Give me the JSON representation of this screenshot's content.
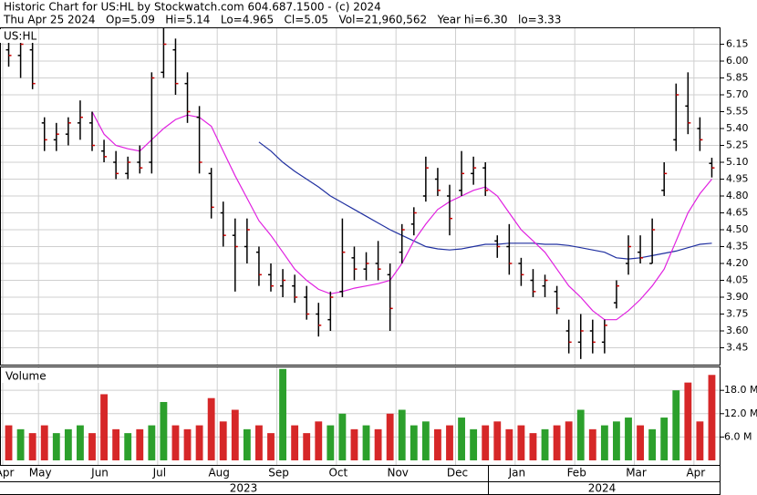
{
  "header": {
    "title": "Historic Chart for US:HL by Stockwatch.com 604.687.1500 - (c) 2024",
    "summary": "Thu Apr 25 2024   Op=5.09   Hi=5.14   Lo=4.965   Cl=5.05   Vol=21,960,562   Year hi=6.30   lo=3.33"
  },
  "chart_data": {
    "type": "ohlc",
    "label": "US:HL",
    "grid": true,
    "categories": [
      "Apr",
      null,
      null,
      "May",
      null,
      null,
      null,
      null,
      "Jun",
      null,
      null,
      null,
      null,
      "Jul",
      null,
      null,
      null,
      null,
      "Aug",
      null,
      null,
      null,
      null,
      "Sep",
      null,
      null,
      null,
      null,
      "Oct",
      null,
      null,
      null,
      null,
      "Nov",
      null,
      null,
      null,
      null,
      "Dec",
      null,
      null,
      null,
      null,
      "Jan",
      null,
      null,
      null,
      null,
      "Feb",
      null,
      null,
      null,
      null,
      "Mar",
      null,
      null,
      null,
      null,
      "Apr",
      null
    ],
    "years": [
      "2023",
      "2024"
    ],
    "open": [
      6.1,
      6.05,
      6.1,
      5.45,
      5.3,
      5.35,
      5.45,
      5.45,
      5.2,
      5.1,
      5.0,
      5.1,
      5.1,
      5.9,
      6.1,
      5.8,
      5.5,
      5.0,
      4.65,
      4.45,
      4.35,
      4.3,
      4.1,
      4.0,
      4.0,
      3.9,
      3.75,
      3.7,
      3.95,
      4.25,
      4.15,
      4.2,
      4.1,
      4.3,
      4.55,
      4.8,
      4.95,
      4.8,
      4.85,
      5.0,
      5.05,
      4.4,
      4.35,
      4.2,
      4.05,
      4.0,
      3.95,
      3.6,
      3.5,
      3.6,
      3.5,
      3.85,
      4.2,
      4.3,
      4.2,
      4.85,
      5.3,
      5.6,
      5.4,
      5.09
    ],
    "high": [
      6.2,
      6.2,
      6.25,
      5.5,
      5.45,
      5.5,
      5.65,
      5.55,
      5.3,
      5.2,
      5.15,
      5.25,
      5.9,
      6.3,
      6.2,
      5.9,
      5.6,
      5.05,
      4.75,
      4.6,
      4.6,
      4.35,
      4.2,
      4.15,
      4.1,
      4.0,
      3.85,
      3.95,
      4.6,
      4.35,
      4.3,
      4.4,
      4.2,
      4.55,
      4.7,
      5.15,
      5.05,
      4.9,
      5.2,
      5.15,
      5.1,
      4.45,
      4.55,
      4.25,
      4.15,
      4.1,
      4.0,
      3.7,
      3.75,
      3.7,
      3.7,
      4.05,
      4.45,
      4.45,
      4.6,
      5.1,
      5.8,
      5.9,
      5.5,
      5.14
    ],
    "low": [
      5.95,
      5.85,
      5.75,
      5.2,
      5.2,
      5.25,
      5.3,
      5.2,
      5.1,
      4.95,
      4.95,
      5.0,
      5.0,
      5.85,
      5.7,
      5.45,
      5.0,
      4.6,
      4.35,
      3.95,
      4.2,
      4.0,
      3.95,
      3.9,
      3.85,
      3.7,
      3.55,
      3.6,
      3.9,
      4.05,
      4.05,
      4.05,
      3.6,
      4.2,
      4.45,
      4.75,
      4.8,
      4.45,
      4.8,
      4.9,
      4.8,
      4.25,
      4.1,
      4.0,
      3.9,
      3.9,
      3.75,
      3.4,
      3.35,
      3.4,
      3.4,
      3.8,
      4.1,
      4.2,
      4.2,
      4.8,
      5.2,
      5.35,
      5.2,
      4.965
    ],
    "close": [
      6.05,
      6.15,
      5.8,
      5.3,
      5.35,
      5.45,
      5.5,
      5.25,
      5.15,
      5.0,
      5.1,
      5.05,
      5.85,
      6.15,
      5.8,
      5.55,
      5.1,
      4.7,
      4.45,
      4.35,
      4.5,
      4.1,
      4.0,
      4.05,
      3.9,
      3.75,
      3.65,
      3.9,
      4.3,
      4.15,
      4.2,
      4.15,
      3.8,
      4.5,
      4.65,
      5.05,
      4.85,
      4.6,
      5.0,
      5.05,
      4.85,
      4.35,
      4.2,
      4.1,
      3.95,
      4.05,
      3.8,
      3.5,
      3.6,
      3.5,
      3.65,
      4.0,
      4.35,
      4.25,
      4.5,
      5.0,
      5.7,
      5.45,
      5.3,
      5.05
    ],
    "bar_color": "#000000",
    "close_color": "#cc0000",
    "ma_short": {
      "color": "#e020e0",
      "values": [
        null,
        null,
        null,
        null,
        null,
        null,
        null,
        5.55,
        5.35,
        5.25,
        5.22,
        5.2,
        5.3,
        5.4,
        5.48,
        5.52,
        5.5,
        5.42,
        5.2,
        4.98,
        4.78,
        4.58,
        4.45,
        4.3,
        4.15,
        4.05,
        3.97,
        3.93,
        3.95,
        3.98,
        4.0,
        4.02,
        4.05,
        4.2,
        4.4,
        4.55,
        4.68,
        4.75,
        4.8,
        4.85,
        4.88,
        4.8,
        4.65,
        4.5,
        4.4,
        4.3,
        4.15,
        4.0,
        3.9,
        3.78,
        3.7,
        3.7,
        3.78,
        3.88,
        4.0,
        4.15,
        4.4,
        4.65,
        4.82,
        4.95
      ]
    },
    "ma_long": {
      "color": "#2030a0",
      "values": [
        null,
        null,
        null,
        null,
        null,
        null,
        null,
        null,
        null,
        null,
        null,
        null,
        null,
        null,
        null,
        null,
        null,
        null,
        null,
        null,
        null,
        5.28,
        5.2,
        5.1,
        5.02,
        4.95,
        4.88,
        4.8,
        4.74,
        4.68,
        4.62,
        4.56,
        4.5,
        4.45,
        4.4,
        4.35,
        4.33,
        4.32,
        4.33,
        4.35,
        4.37,
        4.37,
        4.38,
        4.38,
        4.38,
        4.37,
        4.37,
        4.36,
        4.34,
        4.32,
        4.3,
        4.25,
        4.24,
        4.25,
        4.27,
        4.29,
        4.31,
        4.34,
        4.37,
        4.38
      ]
    },
    "ylim": [
      3.3,
      6.3
    ],
    "yticks": [
      3.45,
      {
        "value": 3.6,
        "label": "3.60"
      },
      3.75,
      {
        "value": 3.9,
        "label": "3.90"
      },
      4.05,
      {
        "value": 4.2,
        "label": "4.20"
      },
      4.35,
      {
        "value": 4.5,
        "label": "4.50"
      },
      4.65,
      {
        "value": 4.8,
        "label": "4.80"
      },
      4.95,
      {
        "value": 5.1,
        "label": "5.10"
      },
      5.25,
      {
        "value": 5.4,
        "label": "5.40"
      },
      5.55,
      {
        "value": 5.7,
        "label": "5.70"
      },
      5.85,
      {
        "value": 6,
        "label": "6.00"
      },
      6.15
    ],
    "volume": {
      "label": "Volume",
      "up_color": "#2ca02c",
      "down_color": "#d62728",
      "values": [
        9,
        8,
        7,
        9,
        7,
        8,
        9,
        7,
        17,
        8,
        7,
        8,
        9,
        15,
        9,
        8,
        9,
        16,
        10,
        13,
        8,
        9,
        7,
        23.5,
        9,
        7,
        10,
        9,
        12,
        8,
        9,
        8,
        12,
        13,
        9,
        10,
        8,
        9,
        11,
        8,
        9,
        10,
        8,
        9,
        7,
        8,
        9,
        10,
        13,
        8,
        9,
        10,
        11,
        9,
        8,
        11,
        18,
        20,
        10,
        21.960562
      ],
      "ylim": [
        0,
        23.9
      ],
      "yticks": [
        {
          "value": 6,
          "label": "6.0 M"
        },
        {
          "value": 12,
          "label": "12.0 M"
        },
        {
          "value": 18,
          "label": "18.0 M"
        }
      ]
    }
  }
}
